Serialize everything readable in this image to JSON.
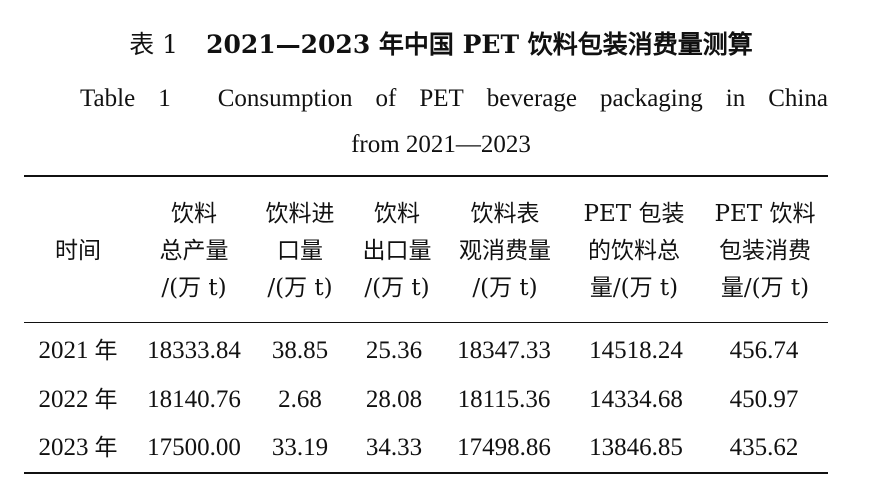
{
  "title_cn": {
    "label": "表 1",
    "text": "2021—2023 年中国 PET 饮料包装消费量测算"
  },
  "title_en": {
    "line1_words": [
      "Table",
      "1",
      "Consumption",
      "of",
      "PET",
      "beverage",
      "packaging",
      "in",
      "China"
    ],
    "line2": "from 2021—2023"
  },
  "table": {
    "headers": [
      [
        "时间"
      ],
      [
        "饮料",
        "总产量",
        "/(万 t)"
      ],
      [
        "饮料进",
        "口量",
        "/(万 t)"
      ],
      [
        "饮料",
        "出口量",
        "/(万 t)"
      ],
      [
        "饮料表",
        "观消费量",
        "/(万 t)"
      ],
      [
        "PET 包装",
        "的饮料总",
        "量/(万 t)"
      ],
      [
        "PET 饮料",
        "包装消费",
        "量/(万 t)"
      ]
    ],
    "rows": [
      {
        "year": "2021",
        "year_suffix": "年",
        "values": [
          "18333.84",
          "38.85",
          "25.36",
          "18347.33",
          "14518.24",
          "456.74"
        ]
      },
      {
        "year": "2022",
        "year_suffix": "年",
        "values": [
          "18140.76",
          "2.68",
          "28.08",
          "18115.36",
          "14334.68",
          "450.97"
        ]
      },
      {
        "year": "2023",
        "year_suffix": "年",
        "values": [
          "17500.00",
          "33.19",
          "34.33",
          "17498.86",
          "13846.85",
          "435.62"
        ]
      }
    ]
  }
}
